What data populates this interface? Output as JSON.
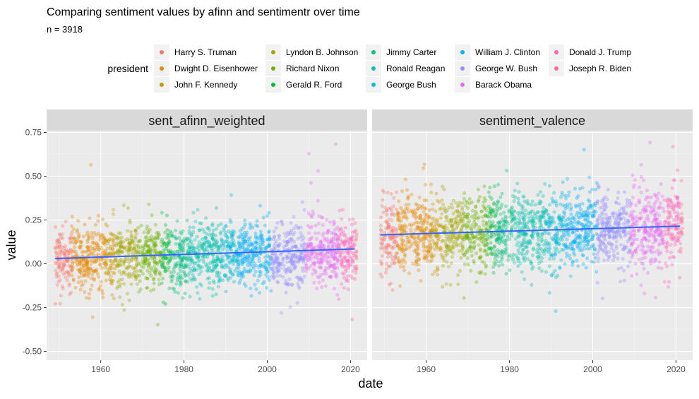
{
  "figure": {
    "title": "Comparing sentiment values by afinn and sentimentr over time",
    "subtitle": "n = 3918",
    "xlabel": "date",
    "ylabel": "value",
    "legend_title": "president"
  },
  "chart_data": {
    "type": "scatter",
    "title": "Comparing sentiment values by afinn and sentimentr over time",
    "subtitle": "n = 3918",
    "xlabel": "date",
    "ylabel": "value",
    "xlim": [
      1947,
      2024
    ],
    "ylim": [
      -0.55,
      0.76
    ],
    "x_ticks": [
      1960,
      1980,
      2000,
      2020
    ],
    "y_ticks": [
      -0.5,
      -0.25,
      0.0,
      0.25,
      0.5,
      0.75
    ],
    "y_tick_labels": [
      "-0.50",
      "-0.25",
      "0.00",
      "0.25",
      "0.50",
      "0.75"
    ],
    "grid": true,
    "legend_position": "top",
    "legend_title": "president",
    "series": [
      {
        "name": "Harry S. Truman",
        "color": "#F8766D",
        "start": 1949.0,
        "end": 1953.0
      },
      {
        "name": "Dwight D. Eisenhower",
        "color": "#E58700",
        "start": 1953.0,
        "end": 1961.0
      },
      {
        "name": "John F. Kennedy",
        "color": "#C99800",
        "start": 1961.0,
        "end": 1963.9
      },
      {
        "name": "Lyndon B. Johnson",
        "color": "#A3A500",
        "start": 1963.9,
        "end": 1969.0
      },
      {
        "name": "Richard Nixon",
        "color": "#6BB100",
        "start": 1969.0,
        "end": 1974.6
      },
      {
        "name": "Gerald R. Ford",
        "color": "#00BA38",
        "start": 1974.6,
        "end": 1977.0
      },
      {
        "name": "Jimmy Carter",
        "color": "#00BF7D",
        "start": 1977.0,
        "end": 1981.0
      },
      {
        "name": "Ronald Reagan",
        "color": "#00C0AF",
        "start": 1981.0,
        "end": 1989.0
      },
      {
        "name": "George Bush",
        "color": "#00BCD8",
        "start": 1989.0,
        "end": 1993.0
      },
      {
        "name": "William J. Clinton",
        "color": "#00B0F6",
        "start": 1993.0,
        "end": 2001.0
      },
      {
        "name": "George W. Bush",
        "color": "#9590FF",
        "start": 2001.0,
        "end": 2009.0
      },
      {
        "name": "Barack Obama",
        "color": "#E76BF3",
        "start": 2009.0,
        "end": 2017.0
      },
      {
        "name": "Donald J. Trump",
        "color": "#FF62BC",
        "start": 2017.0,
        "end": 2021.0
      },
      {
        "name": "Joseph R. Biden",
        "color": "#FF6C91",
        "start": 2021.0,
        "end": 2021.5
      }
    ],
    "panels": [
      {
        "name": "sent_afinn_weighted",
        "point_summary": {
          "center_start": 0.03,
          "center_end": 0.07,
          "spread": 0.09
        },
        "trend": {
          "x": [
            1949,
            2021
          ],
          "y": [
            0.03,
            0.085
          ],
          "color": "#3366FF"
        }
      },
      {
        "name": "sentiment_valence",
        "point_summary": {
          "center_start": 0.17,
          "center_end": 0.21,
          "spread": 0.11
        },
        "trend": {
          "x": [
            1949,
            2021
          ],
          "y": [
            0.165,
            0.215
          ],
          "color": "#3366FF"
        }
      }
    ]
  }
}
